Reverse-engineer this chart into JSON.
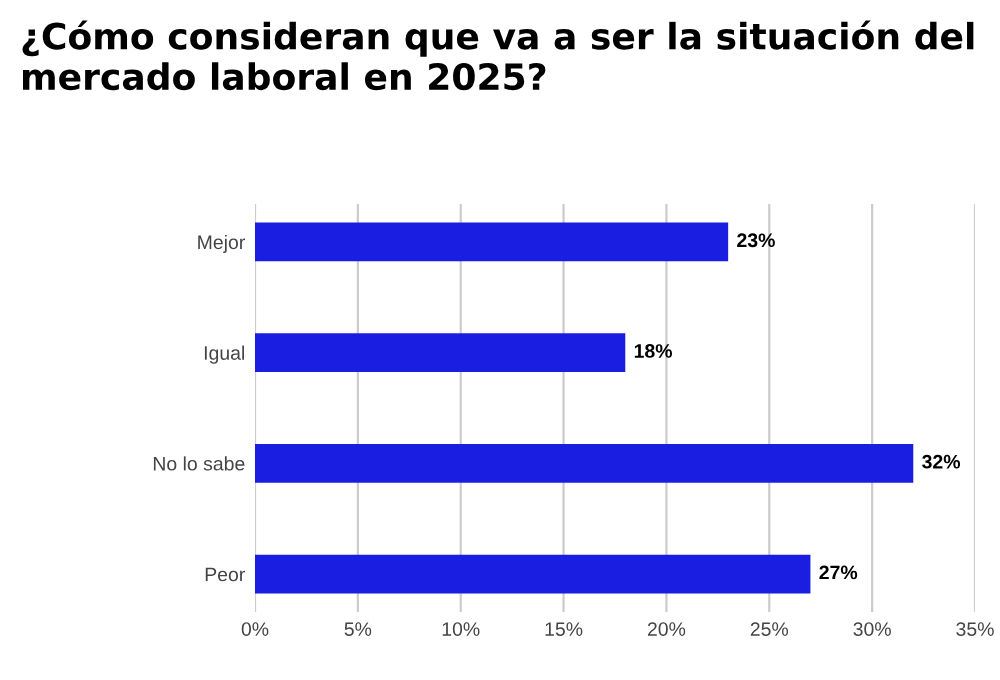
{
  "chart_data": {
    "type": "bar",
    "orientation": "horizontal",
    "title": "¿Cómo consideran que va a ser la situación del mercado laboral en 2025?",
    "categories": [
      "Mejor",
      "Igual",
      "No lo sabe",
      "Peor"
    ],
    "values": [
      23,
      18,
      32,
      27
    ],
    "value_labels": [
      "23%",
      "18%",
      "32%",
      "27%"
    ],
    "color": "#1a1ee0",
    "xlim": [
      0,
      35
    ],
    "xticks": [
      {
        "value": 0,
        "label": "0%"
      },
      {
        "value": 5,
        "label": "5%"
      },
      {
        "value": 10,
        "label": "10%"
      },
      {
        "value": 15,
        "label": "15%"
      },
      {
        "value": 20,
        "label": "20%"
      },
      {
        "value": 25,
        "label": "25%"
      },
      {
        "value": 30,
        "label": "30%"
      },
      {
        "value": 35,
        "label": "35%"
      }
    ],
    "grid": "x"
  }
}
